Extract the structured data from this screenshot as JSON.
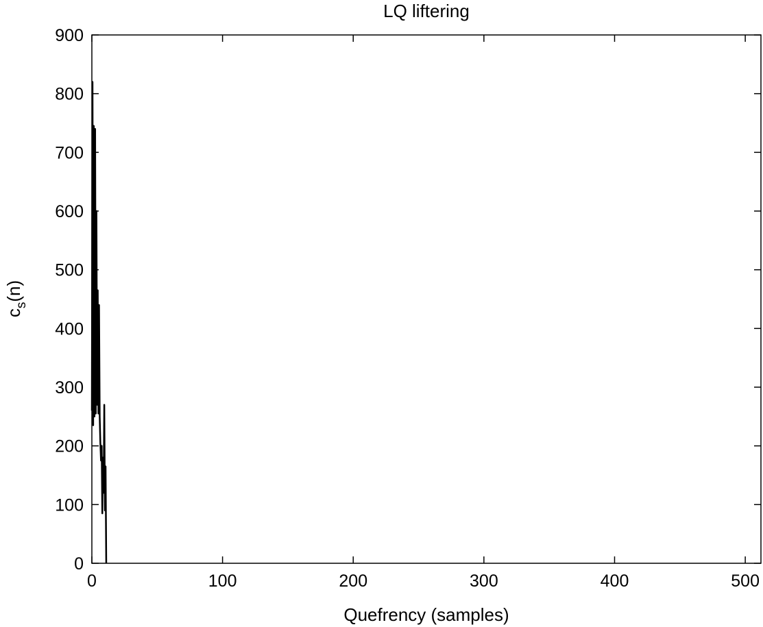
{
  "chart_data": {
    "type": "line",
    "title": "LQ liftering",
    "xlabel": "Quefrency (samples)",
    "ylabel_main": "c",
    "ylabel_sub": "s",
    "ylabel_tail": "(n)",
    "xlim": [
      0,
      512
    ],
    "ylim": [
      0,
      900
    ],
    "xticks": [
      0,
      100,
      200,
      300,
      400,
      500
    ],
    "yticks": [
      0,
      100,
      200,
      300,
      400,
      500,
      600,
      700,
      800,
      900
    ],
    "grid": false,
    "line_color": "#000000",
    "series": [
      {
        "x": [
          0,
          0.5,
          1,
          1.5,
          2,
          2.5,
          3,
          3.5,
          4,
          4.5,
          5,
          5.5,
          6,
          6.5,
          7,
          7.5,
          8,
          8.5,
          9,
          9.5,
          10,
          10.5,
          11
        ],
        "values": [
          260,
          820,
          235,
          745,
          250,
          740,
          255,
          600,
          270,
          465,
          255,
          440,
          250,
          205,
          175,
          200,
          85,
          180,
          120,
          270,
          90,
          165,
          0
        ]
      }
    ]
  }
}
